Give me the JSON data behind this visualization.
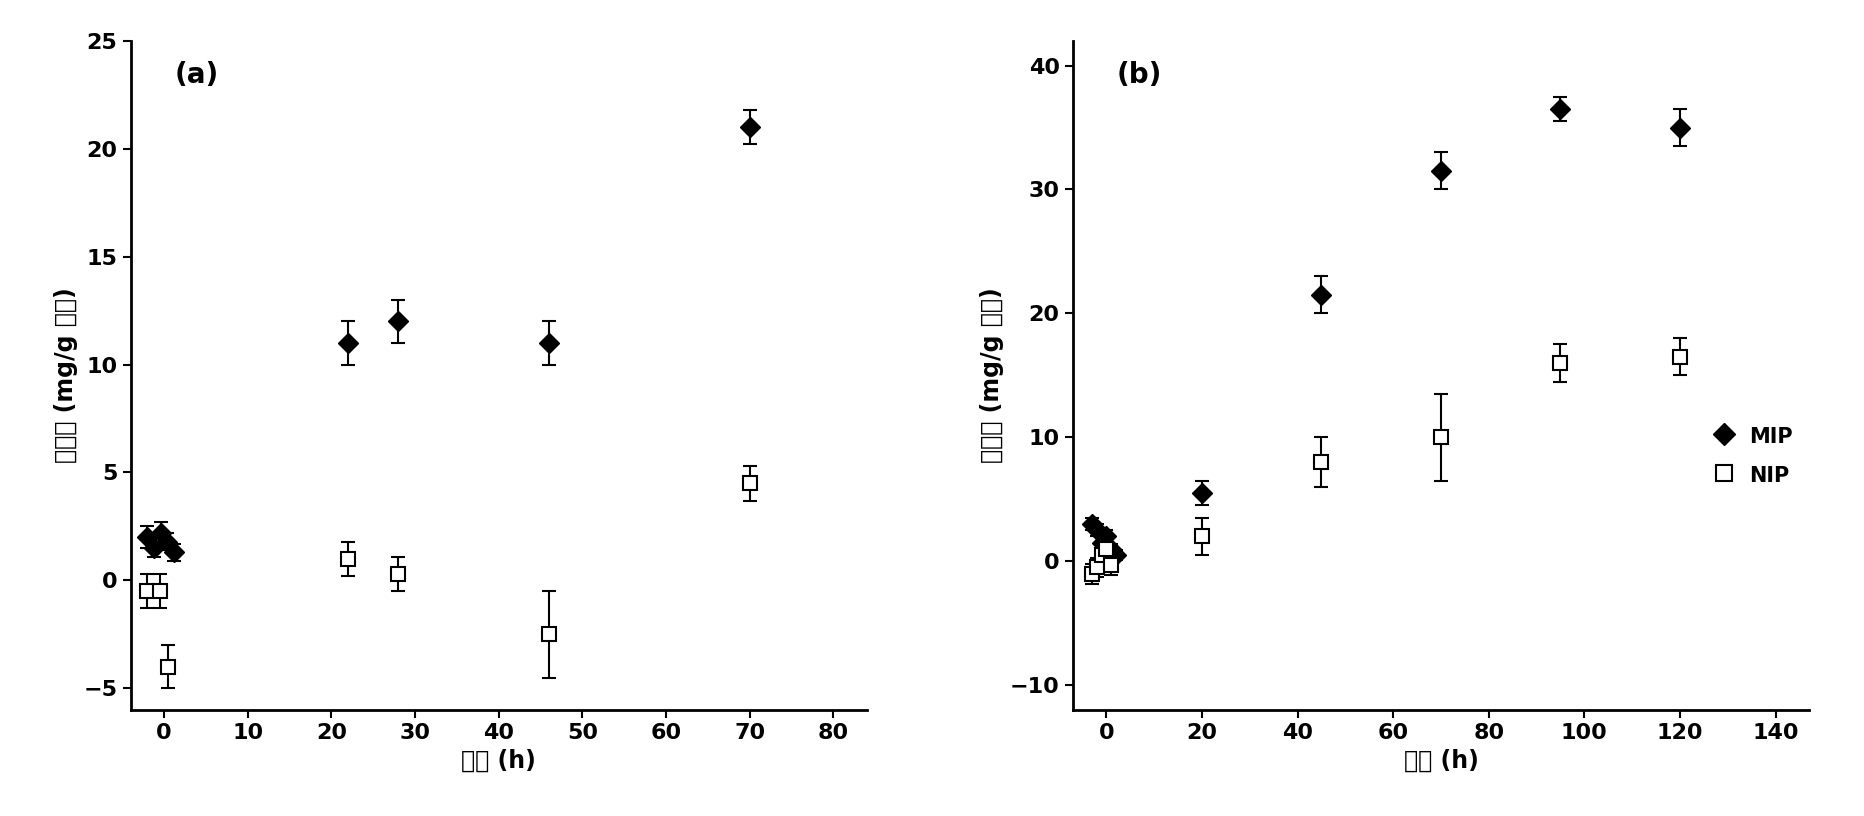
{
  "panel_a": {
    "title": "(a)",
    "xlabel": "时间 (h)",
    "ylabel": "吸附量 (mg/g 微球)",
    "xlim": [
      -4,
      84
    ],
    "ylim": [
      -6,
      25
    ],
    "xticks": [
      0,
      10,
      20,
      30,
      40,
      50,
      60,
      70,
      80
    ],
    "yticks": [
      -5,
      0,
      5,
      10,
      15,
      20,
      25
    ],
    "mip_x": [
      -2.0,
      -1.2,
      -0.4,
      0.4,
      1.2,
      22,
      28,
      46,
      70
    ],
    "mip_y": [
      2.0,
      1.5,
      2.2,
      1.8,
      1.3,
      11.0,
      12.0,
      11.0,
      21.0
    ],
    "mip_yerr": [
      0.5,
      0.4,
      0.5,
      0.4,
      0.4,
      1.0,
      1.0,
      1.0,
      0.8
    ],
    "nip_x": [
      -2.0,
      -0.5,
      0.5,
      22,
      28,
      46,
      70
    ],
    "nip_y": [
      -0.5,
      -0.5,
      -4.0,
      1.0,
      0.3,
      -2.5,
      4.5
    ],
    "nip_yerr": [
      0.8,
      0.8,
      1.0,
      0.8,
      0.8,
      2.0,
      0.8
    ]
  },
  "panel_b": {
    "title": "(b)",
    "xlabel": "时间 (h)",
    "ylabel": "吸附量 (mg/g 微球)",
    "xlim": [
      -7,
      147
    ],
    "ylim": [
      -12,
      42
    ],
    "xticks": [
      0,
      20,
      40,
      60,
      80,
      100,
      120,
      140
    ],
    "yticks": [
      -10,
      0,
      10,
      20,
      30,
      40
    ],
    "mip_x": [
      -3,
      -2,
      -1,
      0,
      1,
      2,
      20,
      45,
      70,
      95,
      120
    ],
    "mip_y": [
      3.0,
      2.5,
      1.5,
      2.0,
      1.0,
      0.5,
      5.5,
      21.5,
      31.5,
      36.5,
      35.0
    ],
    "mip_yerr": [
      0.5,
      0.5,
      0.4,
      0.5,
      0.4,
      0.4,
      1.0,
      1.5,
      1.5,
      1.0,
      1.5
    ],
    "nip_x": [
      -3,
      -2,
      -1,
      0,
      1,
      20,
      45,
      70,
      95,
      120
    ],
    "nip_y": [
      -1.0,
      -0.5,
      0.5,
      1.0,
      -0.3,
      2.0,
      8.0,
      10.0,
      16.0,
      16.5
    ],
    "nip_yerr": [
      0.8,
      0.8,
      0.8,
      0.8,
      0.8,
      1.5,
      2.0,
      3.5,
      1.5,
      1.5
    ],
    "legend_mip": "MIP",
    "legend_nip": "NIP"
  },
  "mip_color": "#000000",
  "nip_color": "#000000",
  "background_color": "#ffffff",
  "title_fontsize": 20,
  "label_fontsize": 17,
  "tick_fontsize": 16,
  "legend_fontsize": 15
}
